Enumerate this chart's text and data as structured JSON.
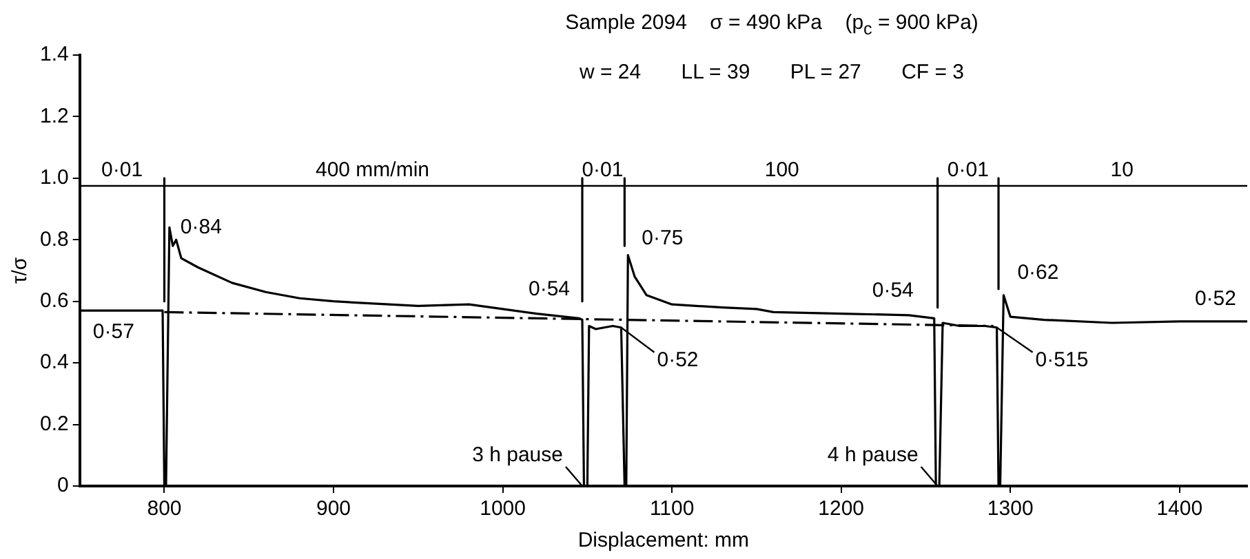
{
  "chart_data": {
    "type": "line",
    "title": "Sample 2094    σ = 490 kPa    (p$_{c}$ = 900 kPa)",
    "subtitle": "w = 24       LL = 39       PL = 27       CF = 3",
    "xlabel": "Displacement: mm",
    "ylabel": "τ/σ",
    "xlim": [
      750,
      1440
    ],
    "xticks": [
      800,
      900,
      1000,
      1100,
      1200,
      1300,
      1400
    ],
    "ylim": [
      0,
      1.4
    ],
    "yticks": [
      0,
      0.2,
      0.4,
      0.6,
      0.8,
      {
        "value": 1.0,
        "label": "1.0"
      },
      1.2,
      1.4
    ],
    "grid": false,
    "legend": false,
    "marker": "none",
    "series": [
      {
        "color": "#000000",
        "line_style": "solid",
        "x": [
          750,
          799,
          800,
          801,
          803,
          805,
          807,
          810,
          820,
          840,
          860,
          880,
          900,
          950,
          980,
          1000,
          1020,
          1045,
          1047,
          1048,
          1050,
          1051,
          1055,
          1065,
          1070,
          1072,
          1073,
          1074,
          1078,
          1085,
          1100,
          1130,
          1150,
          1160,
          1200,
          1240,
          1255,
          1256,
          1258,
          1260,
          1270,
          1285,
          1292,
          1293,
          1294,
          1296,
          1300,
          1320,
          1360,
          1400,
          1440
        ],
        "values": [
          0.57,
          0.57,
          0,
          0,
          0.84,
          0.78,
          0.8,
          0.74,
          0.71,
          0.66,
          0.63,
          0.61,
          0.6,
          0.585,
          0.59,
          0.575,
          0.56,
          0.545,
          0.54,
          0,
          0,
          0.52,
          0.51,
          0.52,
          0.515,
          0,
          0,
          0.75,
          0.68,
          0.62,
          0.59,
          0.58,
          0.575,
          0.565,
          0.56,
          0.555,
          0.545,
          0,
          0,
          0.53,
          0.52,
          0.52,
          0.515,
          0,
          0,
          0.62,
          0.55,
          0.54,
          0.53,
          0.535,
          0.535
        ]
      },
      {
        "color": "#000000",
        "line_style": "dashed",
        "x": [
          800,
          1290
        ],
        "values": [
          0.565,
          0.52
        ]
      },
      {
        "color": "#000000",
        "line_style": "solid",
        "x": [
          800,
          800,
          null,
          1047,
          1047,
          null,
          1072,
          1072,
          null,
          1257,
          1257,
          null,
          1293,
          1293
        ],
        "values": [
          1.0,
          0.6,
          null,
          1.0,
          0.6,
          null,
          1.0,
          0.78,
          null,
          1.0,
          0.58,
          null,
          1.0,
          0.64
        ]
      }
    ],
    "ref_lines": [
      {
        "axis": "y",
        "value": 0.975
      }
    ],
    "annotations": [
      {
        "text": "0·84",
        "x": 803,
        "y": 0.84
      },
      {
        "text": "0·57",
        "x": 770,
        "y": 0.57
      },
      {
        "text": "0·54",
        "x": 1047,
        "y": 0.54
      },
      {
        "text": "0·52",
        "x": 1070,
        "y": 0.515
      },
      {
        "text": "0·75",
        "x": 1074,
        "y": 0.75
      },
      {
        "text": "0·54",
        "x": 1255,
        "y": 0.545
      },
      {
        "text": "0·62",
        "x": 1296,
        "y": 0.62
      },
      {
        "text": "0·515",
        "x": 1292,
        "y": 0.515
      },
      {
        "text": "0·52",
        "x": 1440,
        "y": 0.535
      },
      {
        "text": "3 h pause",
        "x": 1047,
        "y": 0
      },
      {
        "text": "4 h pause",
        "x": 1257,
        "y": 0
      },
      {
        "text": "0·01",
        "x": 775,
        "y": 0.975
      },
      {
        "text": "400 mm/min",
        "x": 923,
        "y": 0.975
      },
      {
        "text": "0·01",
        "x": 1059,
        "y": 0.975
      },
      {
        "text": "100",
        "x": 1165,
        "y": 0.975
      },
      {
        "text": "0·01",
        "x": 1275,
        "y": 0.975
      },
      {
        "text": "10",
        "x": 1366,
        "y": 0.975
      }
    ]
  }
}
